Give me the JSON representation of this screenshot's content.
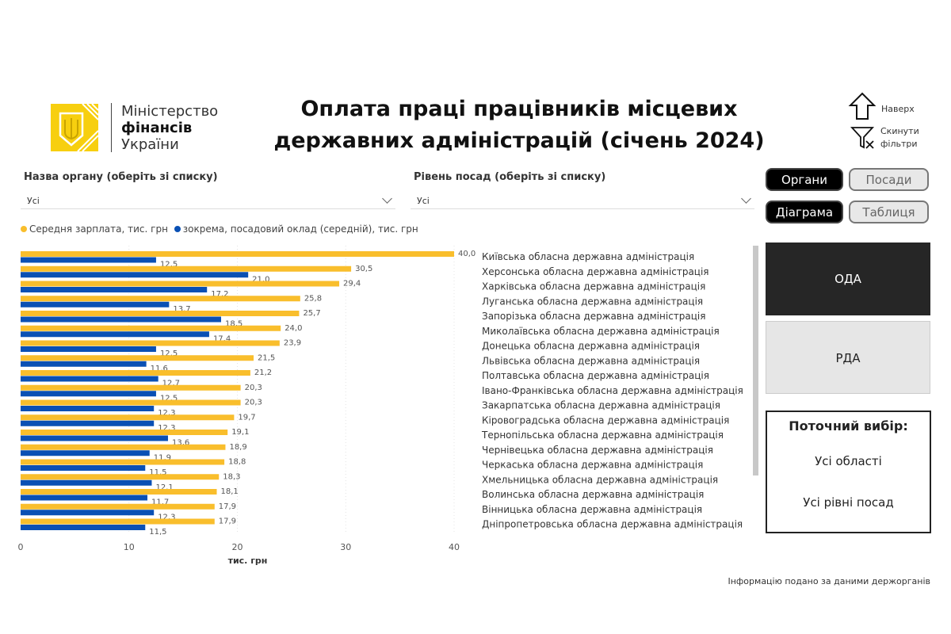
{
  "header": {
    "title_line1": "Оплата праці працівників місцевих",
    "title_line2": "державних адміністрацій (січень 2024)",
    "logo": {
      "line1": "Міністерство",
      "line2": "фінансів",
      "line3": "України",
      "color": "#F7CF0F"
    },
    "nav": {
      "up_label": "Наверх",
      "reset_label_1": "Скинути",
      "reset_label_2": "фільтри"
    }
  },
  "filters": {
    "body": {
      "label": "Назва органу (оберіть зі списку)",
      "value": "Усі"
    },
    "level": {
      "label": "Рівень посад (оберіть зі списку)",
      "value": "Усі"
    }
  },
  "toggles": {
    "organs": "Органи",
    "positions": "Посади",
    "diagram": "Діаграма",
    "table": "Таблиця"
  },
  "tiles": {
    "oda": "ОДА",
    "rda": "РДА"
  },
  "current": {
    "title": "Поточний вибір:",
    "regions": "Усі області",
    "levels": "Усі рівні посад"
  },
  "footer": "Інформацію подано за даними держорганів",
  "colors": {
    "avg": "#F9BE2C",
    "base": "#0A50B4"
  },
  "chart_data": {
    "type": "bar",
    "orientation": "horizontal",
    "xlabel": "тис. грн",
    "xlim": [
      0,
      40
    ],
    "xticks": [
      "0",
      "10",
      "20",
      "30",
      "40"
    ],
    "legend_position": "top-left",
    "categories": [
      "Київська обласна державна адміністрація",
      "Херсонська обласна державна адміністрація",
      "Харківська обласна державна адміністрація",
      "Луганська обласна державна адміністрація",
      "Запорізька обласна державна адміністрація",
      "Миколаївська обласна державна адміністрація",
      "Донецька обласна державна адміністрація",
      "Львівська обласна державна адміністрація",
      "Полтавська обласна державна адміністрація",
      "Івано-Франківська обласна державна адміністрація",
      "Закарпатська обласна державна адміністрація",
      "Кіровоградська обласна державна адміністрація",
      "Тернопільська обласна державна адміністрація",
      "Чернівецька обласна державна адміністрація",
      "Черкаська обласна державна адміністрація",
      "Хмельницька обласна державна адміністрація",
      "Волинська обласна державна адміністрація",
      "Вінницька обласна державна адміністрація",
      "Дніпропетровська обласна державна адміністрація"
    ],
    "series": [
      {
        "name": "Середня зарплата, тис. грн",
        "color": "#F9BE2C",
        "values": [
          40.0,
          30.5,
          29.4,
          25.8,
          25.7,
          24.0,
          23.9,
          21.5,
          21.2,
          20.3,
          20.3,
          19.7,
          19.1,
          18.9,
          18.8,
          18.3,
          18.1,
          17.9,
          17.9
        ]
      },
      {
        "name": "зокрема, посадовий оклад (середній), тис. грн",
        "color": "#0A50B4",
        "values": [
          12.5,
          21.0,
          17.2,
          13.7,
          18.5,
          17.4,
          12.5,
          11.6,
          12.7,
          12.5,
          12.3,
          12.3,
          13.6,
          11.9,
          11.5,
          12.1,
          11.7,
          12.3,
          11.5
        ]
      }
    ]
  }
}
